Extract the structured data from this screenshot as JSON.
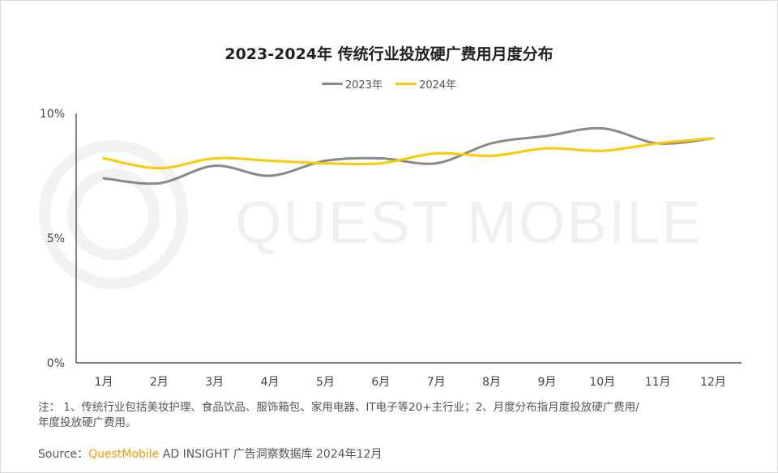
{
  "watermark": "QUEST MOBILE",
  "chart_data": {
    "type": "line",
    "title": "2023-2024年 传统行业投放硬广费用月度分布",
    "categories": [
      "1月",
      "2月",
      "3月",
      "4月",
      "5月",
      "6月",
      "7月",
      "8月",
      "9月",
      "10月",
      "11月",
      "12月"
    ],
    "series": [
      {
        "name": "2023年",
        "color": "#898989",
        "values": [
          7.4,
          7.2,
          7.9,
          7.5,
          8.1,
          8.2,
          8.0,
          8.8,
          9.1,
          9.4,
          8.8,
          9.0
        ]
      },
      {
        "name": "2024年",
        "color": "#ffc800",
        "values": [
          8.2,
          7.8,
          8.2,
          8.1,
          8.0,
          8.0,
          8.4,
          8.3,
          8.6,
          8.5,
          8.8,
          9.0
        ]
      }
    ],
    "yticks": [
      "0%",
      "5%",
      "10%"
    ],
    "ytick_values": [
      0,
      5,
      10
    ],
    "ylim": [
      0,
      10
    ],
    "legend": "top-center",
    "grid": false
  },
  "footer": {
    "note_line1": "注：  1、传统行业包括美妆护理、食品饮品、服饰箱包、家用电器、IT电子等20+主行业；2、月度分布指月度投放硬广费用/",
    "note_line2": "年度投放硬广费用。",
    "source_label": "Source：",
    "source_brand": "QuestMobile",
    "source_text": " AD INSIGHT 广告洞察数据库 2024年12月"
  }
}
